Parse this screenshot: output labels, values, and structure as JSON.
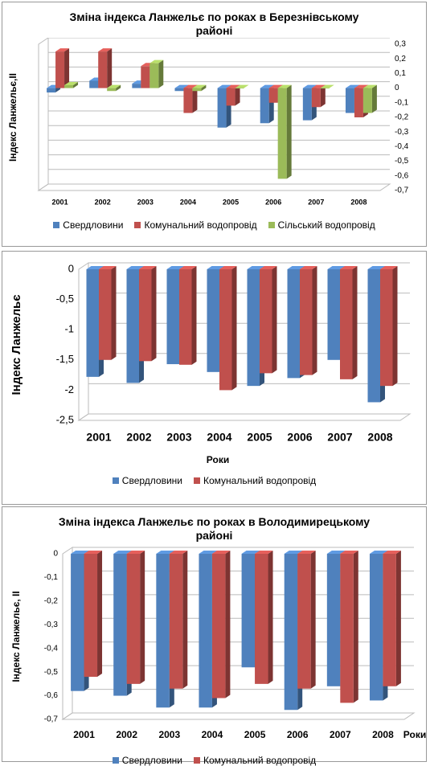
{
  "chart_data": [
    {
      "type": "bar",
      "title": "Зміна індекса Ланжельє по роках в Березнівському районі",
      "y_label": "Індекс Ланжельє,II",
      "y_axis_side": "right",
      "grid": true,
      "legend": "bottom",
      "categories": [
        "2001",
        "2002",
        "2003",
        "2004",
        "2005",
        "2006",
        "2007",
        "2008"
      ],
      "series": [
        {
          "name": "Свердловини",
          "color": "#4f81bd",
          "values": [
            -0.03,
            0.05,
            0.03,
            -0.02,
            -0.27,
            -0.24,
            -0.22,
            -0.17
          ]
        },
        {
          "name": "Комунальний водопровід",
          "color": "#c0504d",
          "values": [
            0.25,
            0.25,
            0.15,
            -0.17,
            -0.12,
            -0.1,
            -0.13,
            -0.2
          ]
        },
        {
          "name": "Сільський водопровід",
          "color": "#9bbb59",
          "values": [
            0.02,
            -0.02,
            0.17,
            -0.02,
            0,
            -0.62,
            0,
            -0.17
          ]
        }
      ],
      "ylim": [
        -0.7,
        0.3
      ],
      "yticks": [
        {
          "value": 0.3,
          "label": "0,3"
        },
        {
          "value": 0.2,
          "label": "0,2"
        },
        {
          "value": 0.1,
          "label": "0,1"
        },
        0,
        {
          "value": -0.1,
          "label": "-0,1"
        },
        {
          "value": -0.2,
          "label": "-0,2"
        },
        {
          "value": -0.3,
          "label": "-0,3"
        },
        {
          "value": -0.4,
          "label": "-0,4"
        },
        {
          "value": -0.5,
          "label": "-0,5"
        },
        {
          "value": -0.6,
          "label": "-0,6"
        },
        {
          "value": -0.7,
          "label": "-0,7"
        }
      ]
    },
    {
      "type": "bar",
      "y_label": "Індекс Ланжельє",
      "x_label": "Роки",
      "y_axis_side": "left",
      "grid": true,
      "legend": "bottom",
      "categories": [
        "2001",
        "2002",
        "2003",
        "2004",
        "2005",
        "2006",
        "2007",
        "2008"
      ],
      "series": [
        {
          "name": "Свердловини",
          "color": "#4f81bd",
          "values": [
            -1.78,
            -1.88,
            -1.57,
            -1.7,
            -1.93,
            -1.8,
            -1.5,
            -2.2
          ]
        },
        {
          "name": "Комунальний водопровід",
          "color": "#c0504d",
          "values": [
            -1.5,
            -1.52,
            -1.58,
            -2.0,
            -1.72,
            -1.75,
            -1.82,
            -1.93
          ]
        }
      ],
      "ylim": [
        -2.5,
        0
      ],
      "yticks": [
        0,
        {
          "value": -0.5,
          "label": "-0,5"
        },
        -1,
        {
          "value": -1.5,
          "label": "-1,5"
        },
        -2,
        {
          "value": -2.5,
          "label": "-2,5"
        }
      ]
    },
    {
      "type": "bar",
      "title": "Зміна індекса Ланжельє по роках в Володимирецькому районі",
      "y_label": "Індекс Ланжельє, ІІ",
      "x_label": "Роки",
      "y_axis_side": "left",
      "grid": true,
      "legend": "bottom",
      "categories": [
        "2001",
        "2002",
        "2003",
        "2004",
        "2005",
        "2006",
        "2007",
        "2008"
      ],
      "series": [
        {
          "name": "Свердловини",
          "color": "#4f81bd",
          "values": [
            -0.58,
            -0.6,
            -0.65,
            -0.65,
            -0.48,
            -0.66,
            -0.56,
            -0.62
          ]
        },
        {
          "name": "Комунальний водопровід",
          "color": "#c0504d",
          "values": [
            -0.52,
            -0.55,
            -0.57,
            -0.61,
            -0.55,
            -0.57,
            -0.63,
            -0.56
          ]
        }
      ],
      "ylim": [
        -0.7,
        0
      ],
      "yticks": [
        0,
        {
          "value": -0.1,
          "label": "-0,1"
        },
        {
          "value": -0.2,
          "label": "-0,2"
        },
        {
          "value": -0.3,
          "label": "-0,3"
        },
        {
          "value": -0.4,
          "label": "-0,4"
        },
        {
          "value": -0.5,
          "label": "-0,5"
        },
        {
          "value": -0.6,
          "label": "-0,6"
        },
        {
          "value": -0.7,
          "label": "-0,7"
        }
      ]
    }
  ]
}
